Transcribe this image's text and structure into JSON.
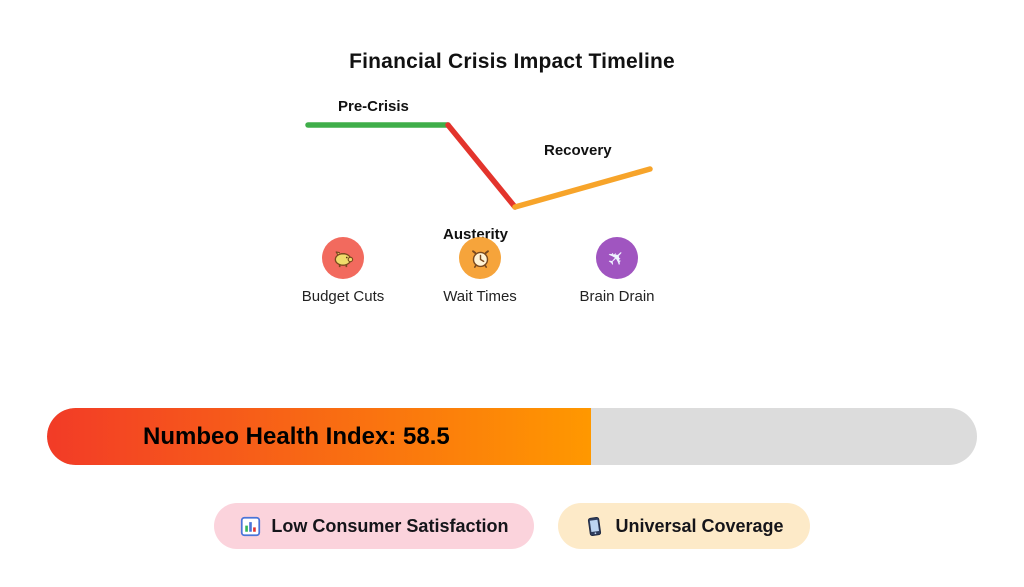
{
  "title": "Financial Crisis Impact Timeline",
  "timeline": {
    "phases": [
      {
        "label": "Pre-Crisis",
        "color": "#3fae49",
        "trend": "flat"
      },
      {
        "label": "Austerity",
        "color": "#e3342c",
        "trend": "down"
      },
      {
        "label": "Recovery",
        "color": "#f7a42a",
        "trend": "up"
      }
    ]
  },
  "impacts": [
    {
      "label": "Budget Cuts",
      "icon": "piggy-bank-icon",
      "circle_color": "#f26a5e"
    },
    {
      "label": "Wait Times",
      "icon": "alarm-clock-icon",
      "circle_color": "#f6a43b"
    },
    {
      "label": "Brain Drain",
      "icon": "airplane-icon",
      "circle_color": "#a055c0",
      "glyph": "✈"
    }
  ],
  "health_index": {
    "label": "Numbeo Health Index: 58.5",
    "value": 58.5,
    "max": 100,
    "fill_gradient": [
      "#f23b27",
      "#ff9800"
    ],
    "track_color": "#dcdcdc"
  },
  "badges": [
    {
      "label": "Low Consumer Satisfaction",
      "icon": "bar-chart-icon",
      "bg": "#fbd3dc"
    },
    {
      "label": "Universal Coverage",
      "icon": "mobile-phone-icon",
      "bg": "#fdeac8"
    }
  ]
}
